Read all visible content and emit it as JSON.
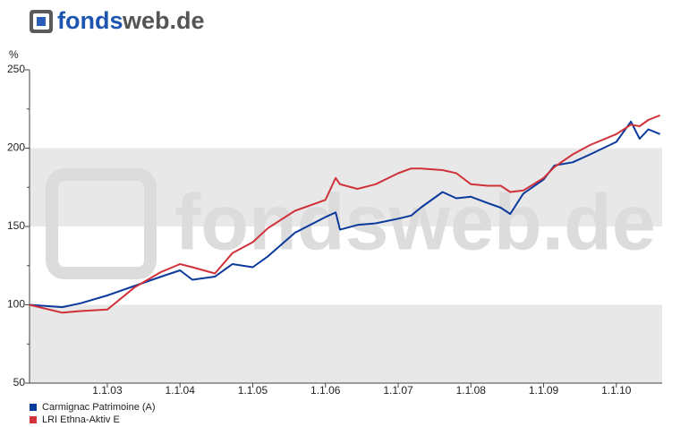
{
  "logo": {
    "brand": "fonds",
    "suffix": "web.de"
  },
  "watermark": "fondsweb.de",
  "chart_data": {
    "type": "line",
    "y_label": "%",
    "x": [
      2001.93,
      2002.38,
      2002.63,
      2003,
      2003.37,
      2003.74,
      2004,
      2004.17,
      2004.48,
      2004.72,
      2005,
      2005.21,
      2005.58,
      2006,
      2006.14,
      2006.2,
      2006.44,
      2006.69,
      2007,
      2007.18,
      2007.31,
      2007.61,
      2007.8,
      2008,
      2008.23,
      2008.41,
      2008.54,
      2008.72,
      2009,
      2009.15,
      2009.4,
      2009.64,
      2010,
      2010.2,
      2010.32,
      2010.44,
      2010.6
    ],
    "series": [
      {
        "name": "Carmignac Patrimoine (A)",
        "color": "#0a3a9c",
        "values": [
          100,
          98.5,
          101,
          106,
          112,
          118,
          122,
          116,
          118,
          126,
          124,
          131,
          146,
          156,
          159,
          148,
          151,
          152,
          155,
          157,
          162,
          172,
          168,
          169,
          165,
          162,
          158,
          171,
          180,
          189,
          191,
          196,
          204,
          217,
          206,
          212,
          209
        ]
      },
      {
        "name": "LRI Ethna-Aktiv E",
        "color": "#d0323a",
        "values": [
          100,
          95,
          96,
          97,
          111,
          121,
          126,
          124,
          120,
          133,
          140,
          149,
          160,
          167,
          181,
          177,
          174,
          177,
          184,
          187,
          187,
          186,
          184,
          177,
          176,
          176,
          172,
          173,
          181,
          188,
          196,
          202,
          209,
          215,
          214,
          218,
          221
        ]
      }
    ],
    "xlim": [
      2001.93,
      2010.63
    ],
    "xticks": [
      {
        "value": 2003,
        "label": "1.1.03"
      },
      {
        "value": 2004,
        "label": "1.1.04"
      },
      {
        "value": 2005,
        "label": "1.1.05"
      },
      {
        "value": 2006,
        "label": "1.1.06"
      },
      {
        "value": 2007,
        "label": "1.1.07"
      },
      {
        "value": 2008,
        "label": "1.1.08"
      },
      {
        "value": 2009,
        "label": "1.1.09"
      },
      {
        "value": 2010,
        "label": "1.1.10"
      }
    ],
    "ylim": [
      50,
      250
    ],
    "yticks": [
      50,
      100,
      150,
      200,
      250
    ],
    "bands": true
  }
}
